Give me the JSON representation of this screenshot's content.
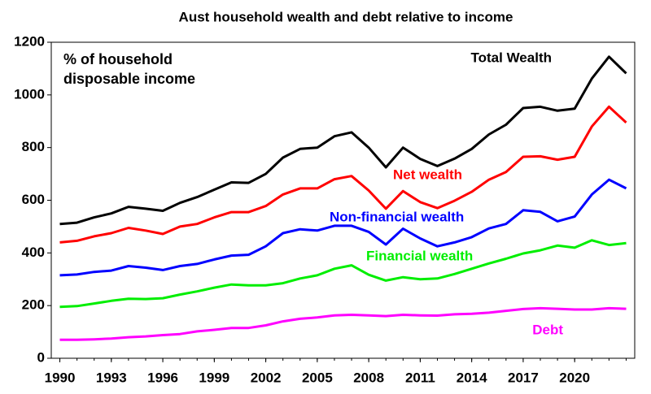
{
  "chart_data": {
    "type": "line",
    "title": "Aust household wealth and debt relative to income",
    "annotation": [
      "% of household",
      "disposable income"
    ],
    "x": [
      1990,
      1991,
      1992,
      1993,
      1994,
      1995,
      1996,
      1997,
      1998,
      1999,
      2000,
      2001,
      2002,
      2003,
      2004,
      2005,
      2006,
      2007,
      2008,
      2009,
      2010,
      2011,
      2012,
      2013,
      2014,
      2015,
      2016,
      2017,
      2018,
      2019,
      2020,
      2021,
      2022,
      2023
    ],
    "xlim": [
      1989.5,
      2023.5
    ],
    "xticks": [
      1990,
      1993,
      1996,
      1999,
      2002,
      2005,
      2008,
      2011,
      2014,
      2017,
      2020
    ],
    "ylim": [
      0,
      1200
    ],
    "yticks": [
      0,
      200,
      400,
      600,
      800,
      1000,
      1200
    ],
    "grid": false,
    "series": [
      {
        "name": "Total Wealth",
        "color": "#000000",
        "values": [
          510,
          515,
          535,
          550,
          575,
          568,
          560,
          590,
          612,
          640,
          668,
          666,
          700,
          762,
          795,
          800,
          843,
          858,
          800,
          725,
          800,
          757,
          730,
          758,
          795,
          850,
          887,
          950,
          955,
          940,
          948,
          1062,
          1145,
          1082
        ]
      },
      {
        "name": "Net wealth",
        "color": "#ff0000",
        "values": [
          440,
          446,
          463,
          475,
          495,
          485,
          472,
          500,
          510,
          535,
          555,
          555,
          578,
          622,
          645,
          645,
          680,
          692,
          637,
          568,
          635,
          593,
          570,
          598,
          632,
          678,
          707,
          765,
          767,
          754,
          765,
          880,
          955,
          895
        ]
      },
      {
        "name": "Non-financial wealth",
        "color": "#0000ff",
        "values": [
          315,
          318,
          328,
          333,
          350,
          344,
          335,
          350,
          358,
          375,
          390,
          393,
          425,
          475,
          490,
          485,
          503,
          503,
          480,
          432,
          492,
          455,
          425,
          440,
          460,
          493,
          510,
          562,
          556,
          520,
          538,
          622,
          678,
          645
        ]
      },
      {
        "name": "Financial wealth",
        "color": "#00ee00",
        "values": [
          195,
          198,
          208,
          218,
          226,
          225,
          228,
          242,
          254,
          268,
          280,
          277,
          277,
          285,
          303,
          315,
          340,
          353,
          317,
          295,
          308,
          300,
          303,
          320,
          340,
          360,
          378,
          398,
          410,
          428,
          420,
          448,
          430,
          437
        ]
      },
      {
        "name": "Debt",
        "color": "#ff00ff",
        "values": [
          70,
          70,
          72,
          75,
          80,
          83,
          88,
          92,
          102,
          108,
          115,
          115,
          125,
          140,
          150,
          155,
          163,
          165,
          163,
          160,
          165,
          163,
          162,
          167,
          169,
          173,
          180,
          187,
          190,
          188,
          185,
          185,
          190,
          188
        ]
      }
    ]
  }
}
